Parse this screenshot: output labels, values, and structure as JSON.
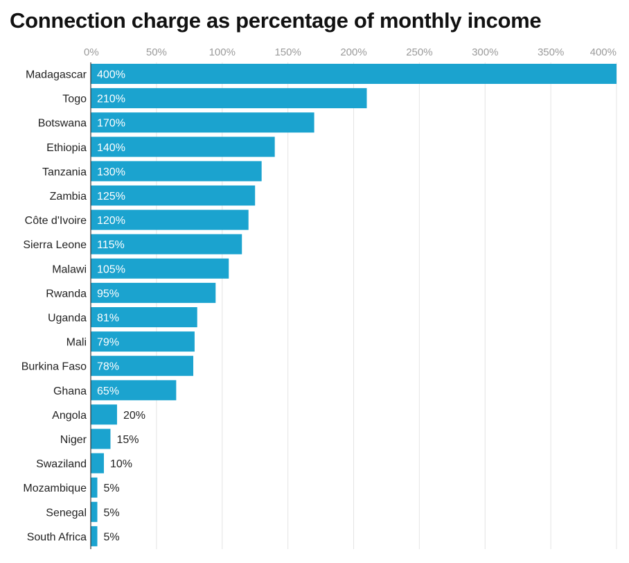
{
  "chart_data": {
    "type": "bar",
    "orientation": "horizontal",
    "title": "Connection charge as percentage of monthly income",
    "xlim": [
      0,
      400
    ],
    "ticks": [
      0,
      50,
      100,
      150,
      200,
      250,
      300,
      350,
      400
    ],
    "tick_labels": [
      "0%",
      "50%",
      "100%",
      "150%",
      "200%",
      "250%",
      "300%",
      "350%",
      "400%"
    ],
    "grid": true,
    "bar_color": "#1ba3cf",
    "categories": [
      "Madagascar",
      "Togo",
      "Botswana",
      "Ethiopia",
      "Tanzania",
      "Zambia",
      "Côte d'Ivoire",
      "Sierra Leone",
      "Malawi",
      "Rwanda",
      "Uganda",
      "Mali",
      "Burkina Faso",
      "Ghana",
      "Angola",
      "Niger",
      "Swaziland",
      "Mozambique",
      "Senegal",
      "South Africa"
    ],
    "values": [
      400,
      210,
      170,
      140,
      130,
      125,
      120,
      115,
      105,
      95,
      81,
      79,
      78,
      65,
      20,
      15,
      10,
      5,
      5,
      5
    ],
    "value_labels": [
      "400%",
      "210%",
      "170%",
      "140%",
      "130%",
      "125%",
      "120%",
      "115%",
      "105%",
      "95%",
      "81%",
      "79%",
      "78%",
      "65%",
      "20%",
      "15%",
      "10%",
      "5%",
      "5%",
      "5%"
    ]
  }
}
